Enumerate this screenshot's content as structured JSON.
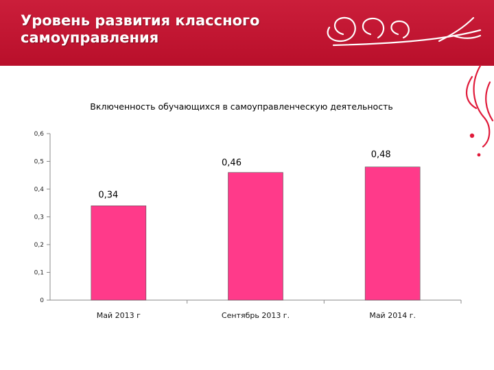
{
  "slide": {
    "title_line1": "Уровень развития классного",
    "title_line2": "самоуправления"
  },
  "theme": {
    "banner_color": "#c8102e",
    "bar_color": "#ff3a8a",
    "ornament_color": "#e01a3a"
  },
  "chart_data": {
    "type": "bar",
    "title": "Включенность обучающихся в самоуправленческую деятельность",
    "categories": [
      "Май 2013 г",
      "Сентябрь 2013 г.",
      "Май 2014 г."
    ],
    "values": [
      0.34,
      0.46,
      0.48
    ],
    "value_labels": [
      "0,34",
      "0,46",
      "0,48"
    ],
    "yticks": [
      "0",
      "0,1",
      "0,2",
      "0,3",
      "0,4",
      "0,5",
      "0,6"
    ],
    "ylim": [
      0,
      0.6
    ],
    "xlabel": "",
    "ylabel": "",
    "grid": false,
    "legend": "none"
  }
}
